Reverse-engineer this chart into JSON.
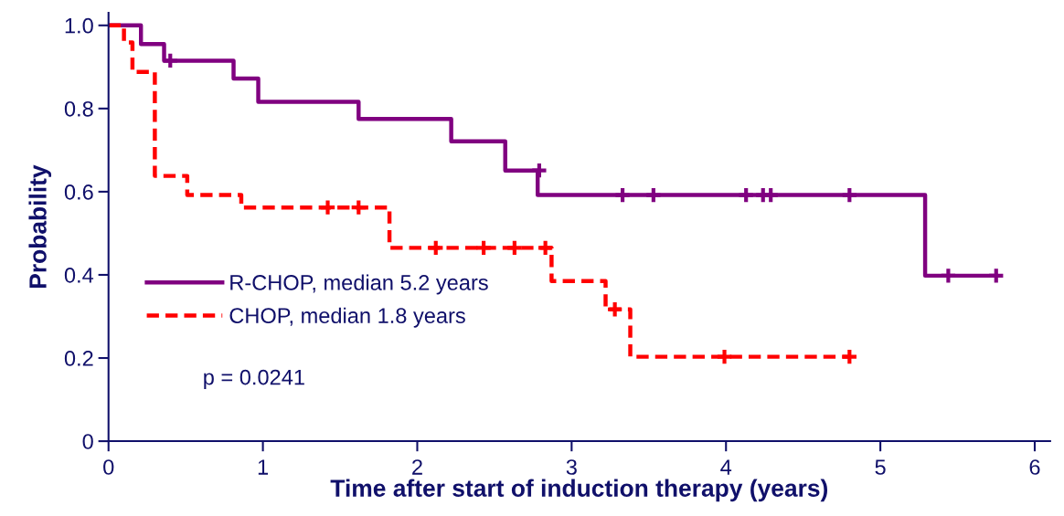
{
  "chart_data": {
    "type": "step",
    "xlabel": "Time after start of induction therapy (years)",
    "ylabel": "Probability",
    "xlim": [
      0,
      6.1
    ],
    "ylim": [
      0,
      1.03
    ],
    "xticks": [
      0,
      1,
      2,
      3,
      4,
      5,
      6
    ],
    "yticks": [
      0,
      0.2,
      0.4,
      0.6,
      0.8,
      {
        "value": 1.0,
        "label": "1.0"
      }
    ],
    "grid": false,
    "legend": "bottom left",
    "annotations": [
      "p = 0.0241"
    ],
    "series": [
      {
        "name": "R-CHOP, median 5.2 years",
        "color": "#800080",
        "line_style": "solid",
        "x": [
          0,
          0.21,
          0.36,
          0.81,
          0.97,
          1.62,
          2.22,
          2.57,
          2.78,
          5.29,
          5.75
        ],
        "values": [
          1.0,
          0.955,
          0.915,
          0.872,
          0.816,
          0.775,
          0.721,
          0.651,
          0.592,
          0.398,
          0.398
        ]
      },
      {
        "name": "CHOP, median 1.8 years",
        "color": "#ff0000",
        "line_style": "dashed",
        "x": [
          0,
          0.1,
          0.155,
          0.3,
          0.51,
          0.86,
          1.82,
          2.87,
          3.22,
          3.38,
          4.8
        ],
        "values": [
          1.0,
          0.959,
          0.888,
          0.638,
          0.592,
          0.562,
          0.465,
          0.385,
          0.317,
          0.203,
          0.203
        ]
      },
      {
        "type": "scatter",
        "color": "#800080",
        "marker": "cross",
        "x": [
          0.4,
          2.79,
          3.33,
          3.53,
          4.13,
          4.24,
          4.29,
          4.8,
          5.44,
          5.75
        ],
        "values": [
          0.915,
          0.651,
          0.592,
          0.592,
          0.592,
          0.592,
          0.592,
          0.592,
          0.398,
          0.398
        ]
      },
      {
        "type": "scatter",
        "color": "#ff0000",
        "marker": "cross",
        "x": [
          1.42,
          1.62,
          2.12,
          2.43,
          2.63,
          2.83,
          3.28,
          3.99,
          4.8
        ],
        "values": [
          0.562,
          0.562,
          0.465,
          0.465,
          0.465,
          0.465,
          0.317,
          0.203,
          0.203
        ]
      }
    ]
  }
}
